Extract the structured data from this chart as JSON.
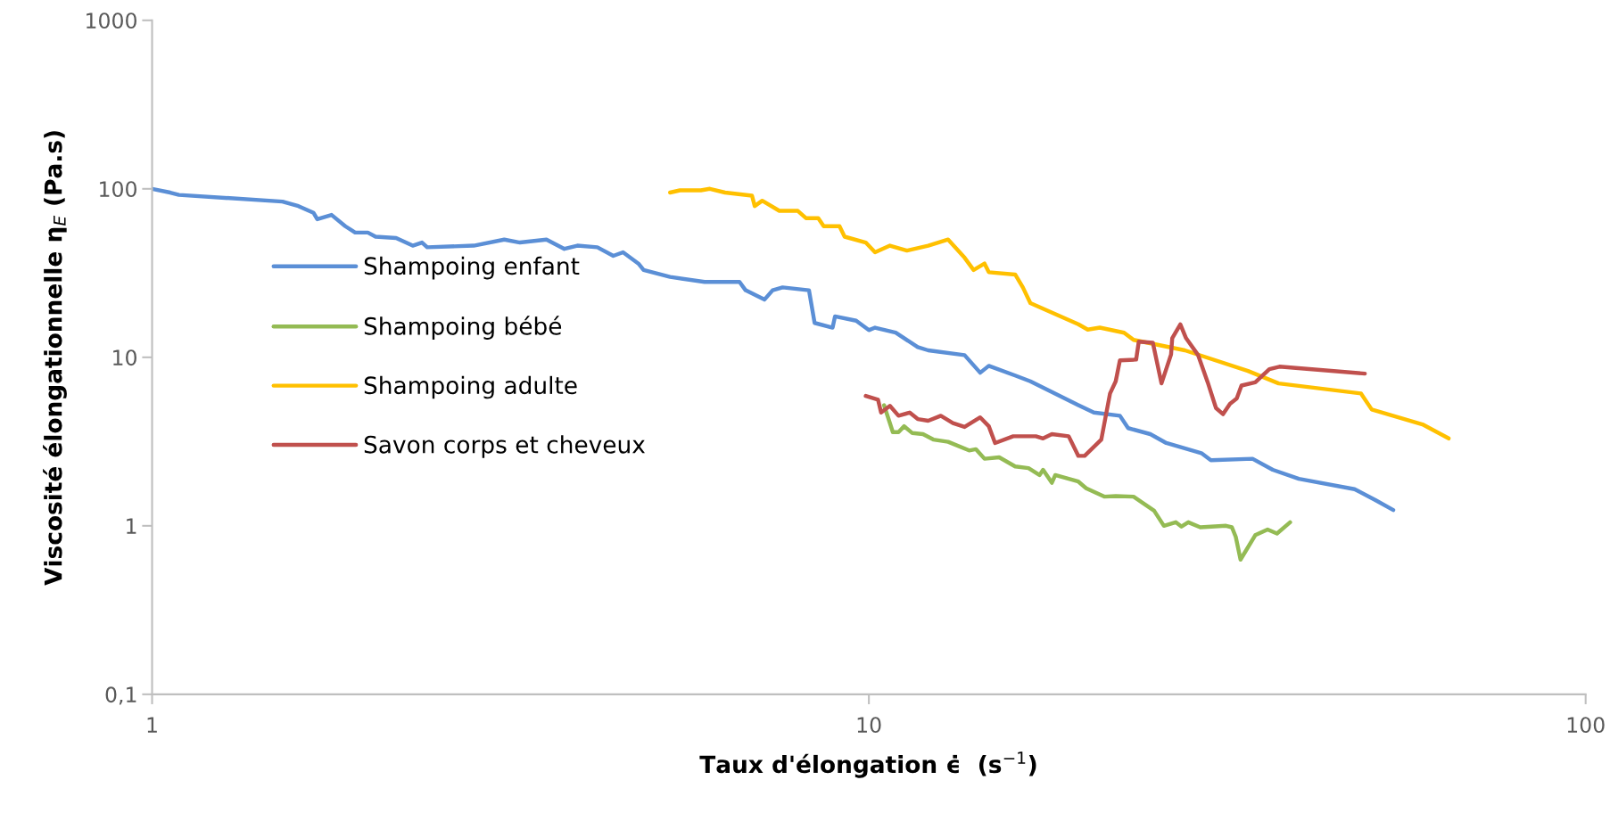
{
  "chart_data": {
    "type": "line",
    "xlabel": "Taux d'élongation ϵ̇  (s$^{−1}$)",
    "ylabel": "Viscosité élongationnelle η$_{E}$ (Pa.s)",
    "log": "xy",
    "xlim": [
      1,
      100
    ],
    "ylim": [
      0.1,
      1000
    ],
    "xticks": [
      1,
      10,
      100
    ],
    "yticks": [
      {
        "value": 0.1,
        "label": "0,1"
      },
      1,
      10,
      100,
      1000
    ],
    "grid": false,
    "legend": "left",
    "marker": "none",
    "line_style": "solid",
    "series": [
      {
        "name": "Shampoing enfant",
        "color": "#5b8fd6",
        "x": [
          1,
          1.06,
          1.09,
          1.52,
          1.6,
          1.68,
          1.7,
          1.78,
          1.86,
          1.92,
          2.0,
          2.05,
          2.19,
          2.31,
          2.38,
          2.42,
          2.81,
          3.1,
          3.26,
          3.55,
          3.76,
          3.92,
          4.18,
          4.4,
          4.54,
          4.77,
          4.85,
          5.28,
          5.9,
          6.6,
          6.73,
          7.15,
          7.34,
          7.58,
          8.25,
          8.4,
          8.9,
          8.97,
          9.6,
          10.0,
          10.2,
          10.9,
          11.7,
          12.1,
          13.6,
          14.3,
          14.7,
          16.0,
          16.8,
          17.9,
          19.6,
          20.6,
          22.4,
          23.0,
          24.7,
          26.0,
          29.1,
          30.0,
          34.3,
          36.6,
          39.8,
          47.6,
          50.9,
          53.9
        ],
        "values": [
          100,
          95,
          92,
          84,
          79,
          72,
          66,
          70,
          60,
          55,
          55,
          52,
          51,
          46,
          48,
          45,
          46,
          50,
          48,
          50,
          44,
          46,
          45,
          40,
          42,
          36,
          33,
          30,
          28,
          28,
          25,
          22,
          25,
          26,
          25,
          16,
          15,
          17.5,
          16.5,
          14.5,
          15,
          14,
          11.5,
          11,
          10.3,
          8.1,
          8.9,
          7.8,
          7.2,
          6.3,
          5.2,
          4.7,
          4.5,
          3.8,
          3.5,
          3.1,
          2.7,
          2.45,
          2.5,
          2.15,
          1.9,
          1.65,
          1.42,
          1.24
        ]
      },
      {
        "name": "Shampoing bébé",
        "color": "#94bb54",
        "x": [
          10.5,
          10.8,
          11.0,
          11.2,
          11.5,
          11.9,
          12.3,
          12.9,
          13.8,
          14.1,
          14.5,
          15.2,
          16.0,
          16.7,
          17.3,
          17.5,
          18.0,
          18.2,
          19.6,
          20.1,
          21.3,
          22.1,
          23.4,
          25.0,
          25.8,
          26.8,
          27.3,
          27.9,
          29.0,
          31.5,
          32.1,
          32.5,
          33.0,
          34.6,
          36.0,
          37.1,
          38.7
        ],
        "values": [
          5.2,
          3.6,
          3.6,
          3.9,
          3.55,
          3.5,
          3.25,
          3.15,
          2.8,
          2.85,
          2.5,
          2.55,
          2.25,
          2.2,
          2.0,
          2.15,
          1.8,
          2.0,
          1.83,
          1.67,
          1.49,
          1.5,
          1.49,
          1.23,
          1.0,
          1.05,
          0.99,
          1.05,
          0.98,
          1.0,
          0.98,
          0.86,
          0.63,
          0.88,
          0.95,
          0.9,
          1.05
        ]
      },
      {
        "name": "Shampoing adulte",
        "color": "#ffc000",
        "x": [
          5.28,
          5.45,
          5.83,
          6.0,
          6.3,
          6.87,
          6.93,
          7.1,
          7.5,
          7.96,
          8.17,
          8.5,
          8.65,
          9.1,
          9.25,
          9.9,
          10.2,
          10.7,
          11.3,
          12.1,
          12.9,
          13.6,
          14.0,
          14.5,
          14.7,
          16.0,
          16.4,
          16.8,
          19.6,
          20.2,
          21.0,
          22.7,
          23.4,
          27.6,
          33.8,
          37.3,
          48.6,
          50.3,
          59.2,
          64.4
        ],
        "values": [
          95,
          98,
          98,
          100,
          95,
          91,
          79,
          85,
          74,
          74,
          67,
          67,
          60,
          60,
          52,
          48,
          42,
          46,
          43,
          46,
          50,
          39,
          33,
          36,
          32,
          31,
          26,
          21,
          15.7,
          14.6,
          15,
          14,
          12.7,
          11,
          8.3,
          7,
          6.1,
          4.9,
          4,
          3.3
        ]
      },
      {
        "name": "Savon corps et cheveux",
        "color": "#c0504d",
        "x": [
          9.9,
          10.3,
          10.4,
          10.7,
          11.0,
          11.4,
          11.7,
          12.1,
          12.6,
          13.1,
          13.6,
          14.3,
          14.7,
          15.0,
          15.9,
          17.1,
          17.5,
          18.0,
          19.0,
          19.6,
          20.0,
          21.1,
          21.7,
          22.1,
          22.4,
          23.6,
          23.8,
          24.9,
          25.6,
          26.4,
          26.5,
          27.2,
          27.7,
          28.8,
          29.7,
          30.5,
          31.2,
          31.9,
          32.6,
          33.1,
          34.6,
          36.2,
          37.4,
          49.2
        ],
        "values": [
          5.9,
          5.6,
          4.7,
          5.15,
          4.5,
          4.7,
          4.3,
          4.2,
          4.5,
          4.07,
          3.86,
          4.4,
          3.9,
          3.1,
          3.4,
          3.4,
          3.3,
          3.5,
          3.4,
          2.6,
          2.6,
          3.25,
          6.1,
          7.2,
          9.6,
          9.7,
          12.4,
          12.2,
          7.0,
          10.4,
          13.0,
          15.7,
          13.0,
          10.3,
          7.1,
          5.0,
          4.6,
          5.3,
          5.7,
          6.8,
          7.1,
          8.5,
          8.8,
          8.0
        ]
      }
    ]
  }
}
